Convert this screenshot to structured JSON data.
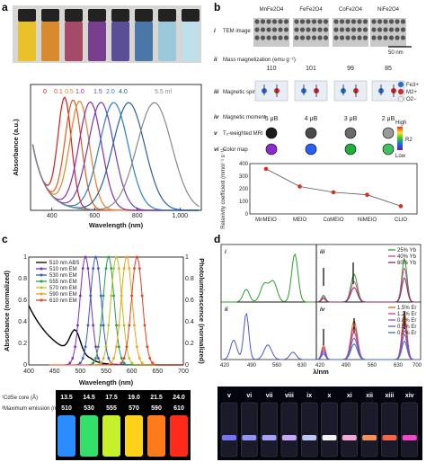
{
  "panels": {
    "a": {
      "letter": "a",
      "ylabel": "Absorbance (a.u.)",
      "xlabel": "Wavelength (nm)",
      "x_ticks": [
        "400",
        "600",
        "800",
        "1,000"
      ],
      "volume_labels": [
        "0",
        "0.1",
        "0.5",
        "1.0",
        "1.5",
        "2.0",
        "4.0",
        "5.5 ml"
      ],
      "volume_colors": [
        "#d81b1b",
        "#e35a17",
        "#e8812a",
        "#8a2cb0",
        "#6b3fc4",
        "#2a7fc9",
        "#2b5fa3",
        "#888888"
      ],
      "vial_colors": [
        "#e7c22a",
        "#d98a2e",
        "#a64a6a",
        "#7a3e8e",
        "#5a4e96",
        "#4a76a8",
        "#9cc8dc",
        "#bfe0ea"
      ]
    },
    "b": {
      "letter": "b",
      "compounds": [
        "MnFe2O4",
        "FeFe2O4",
        "CoFe2O4",
        "NiFe2O4"
      ],
      "scale_bar": "50 nm",
      "rows": [
        {
          "num": "i",
          "label": "TEM image"
        },
        {
          "num": "ii",
          "label": "Mass magnetization (emu g⁻¹)"
        },
        {
          "num": "iii",
          "label": "Magnetic spin structure"
        },
        {
          "num": "iv",
          "label": "Magnetic moment"
        },
        {
          "num": "v",
          "label": "T₂-weighted MRI"
        },
        {
          "num": "vi",
          "label": "Color map"
        }
      ],
      "magnetization": [
        "110",
        "101",
        "99",
        "85"
      ],
      "moments": [
        "5 μB",
        "4 μB",
        "3 μB",
        "2 μB"
      ],
      "ion_legend": [
        "Fe3+",
        "M2+",
        "O2−"
      ],
      "colormap_high": "High",
      "colormap_low": "Low",
      "colormap_r2": "R2",
      "relax_ylabel": "Relaxivity coefficient (mmol⁻¹ s⁻¹)",
      "relax_categories": [
        "MnMEIO",
        "MEIO",
        "CoMEIO",
        "NiMEIO",
        "CLIO"
      ],
      "relax_ticks": [
        "0",
        "100",
        "200",
        "300",
        "400"
      ]
    },
    "c": {
      "letter": "c",
      "ylabel_left": "Absorbance (normalized)",
      "ylabel_right": "Photoluminescence (normalized)",
      "xlabel": "Wavelength (nm)",
      "x_ticks": [
        "400",
        "450",
        "500",
        "550",
        "600",
        "650",
        "700"
      ],
      "y_ticks": [
        "0",
        "0.2",
        "0.4",
        "0.6",
        "0.8",
        "1"
      ],
      "legend": [
        {
          "label": "510 nm ABS",
          "color": "#000000"
        },
        {
          "label": "510 nm EM",
          "color": "#7b2fbe"
        },
        {
          "label": "530 nm EM",
          "color": "#3a56d6"
        },
        {
          "label": "555 nm EM",
          "color": "#23a04a"
        },
        {
          "label": "570 nm EM",
          "color": "#b9c21f"
        },
        {
          "label": "590 nm EM",
          "color": "#f0a21a"
        },
        {
          "label": "610 nm EM",
          "color": "#e8401c"
        }
      ],
      "table_row1_label": "¹CdSe core (Å)",
      "table_row2_label": "²Maximum emission (nm)",
      "core_sizes": [
        "13.5",
        "14.5",
        "17.5",
        "19.0",
        "21.5",
        "24.0"
      ],
      "max_emission": [
        "510",
        "530",
        "555",
        "570",
        "590",
        "610"
      ],
      "vial_colors": [
        "#2a8cff",
        "#33e06a",
        "#c7ef2a",
        "#ffd21a",
        "#ff7a1a",
        "#ff2a1a"
      ]
    },
    "d": {
      "letter": "d",
      "xlabel": "λ/nm",
      "x_ticks": [
        "420",
        "490",
        "560",
        "630",
        "700"
      ],
      "subpanels": [
        "i",
        "ii",
        "iii",
        "iv"
      ],
      "legend_iii": [
        {
          "label": "25% Yb",
          "color": "#2f9e2f"
        },
        {
          "label": "40% Yb",
          "color": "#d04a8a"
        },
        {
          "label": "60% Yb",
          "color": "#8a2a6a"
        }
      ],
      "legend_iv": [
        {
          "label": "1.5% Er",
          "color": "#e0601a"
        },
        {
          "label": "1.2% Er",
          "color": "#d0406a"
        },
        {
          "label": "0.8% Er",
          "color": "#a04ab0"
        },
        {
          "label": "0.5% Er",
          "color": "#6a5ac8"
        },
        {
          "label": "0.2% Er",
          "color": "#3a6ad0"
        }
      ],
      "vial_labels": [
        "v",
        "vi",
        "vii",
        "viii",
        "ix",
        "x",
        "xi",
        "xii",
        "xiii",
        "xiv"
      ],
      "vial_colors": [
        "#7a7aff",
        "#9a9aff",
        "#b0a8ff",
        "#d0b0ff",
        "#c8d0ff",
        "#ffffff",
        "#ffb0e0",
        "#ff9a5a",
        "#ff6a4a",
        "#ff4ad0"
      ]
    }
  },
  "chart_data": [
    {
      "type": "line",
      "panel": "a",
      "xlabel": "Wavelength (nm)",
      "ylabel": "Absorbance (a.u.)",
      "xlim": [
        300,
        1100
      ],
      "series": [
        {
          "name": "0",
          "peak": 460
        },
        {
          "name": "0.1",
          "peak": 500
        },
        {
          "name": "0.5",
          "peak": 530
        },
        {
          "name": "1.0",
          "peak": 580
        },
        {
          "name": "1.5",
          "peak": 630
        },
        {
          "name": "2.0",
          "peak": 690
        },
        {
          "name": "4.0",
          "peak": 760
        },
        {
          "name": "5.5 ml",
          "peak": 880
        }
      ]
    },
    {
      "type": "line",
      "panel": "b",
      "ylabel": "Relaxivity coefficient (mmol⁻¹ s⁻¹)",
      "categories": [
        "MnMEIO",
        "MEIO",
        "CoMEIO",
        "NiMEIO",
        "CLIO"
      ],
      "values": [
        358,
        218,
        172,
        152,
        62
      ],
      "ylim": [
        0,
        400
      ]
    },
    {
      "type": "line",
      "panel": "c",
      "xlabel": "Wavelength (nm)",
      "xlim": [
        400,
        700
      ],
      "ylim": [
        0,
        1
      ],
      "series": [
        {
          "name": "510 nm EM",
          "peak": 510
        },
        {
          "name": "530 nm EM",
          "peak": 530
        },
        {
          "name": "555 nm EM",
          "peak": 555
        },
        {
          "name": "570 nm EM",
          "peak": 570
        },
        {
          "name": "590 nm EM",
          "peak": 590
        },
        {
          "name": "610 nm EM",
          "peak": 610
        }
      ]
    }
  ]
}
